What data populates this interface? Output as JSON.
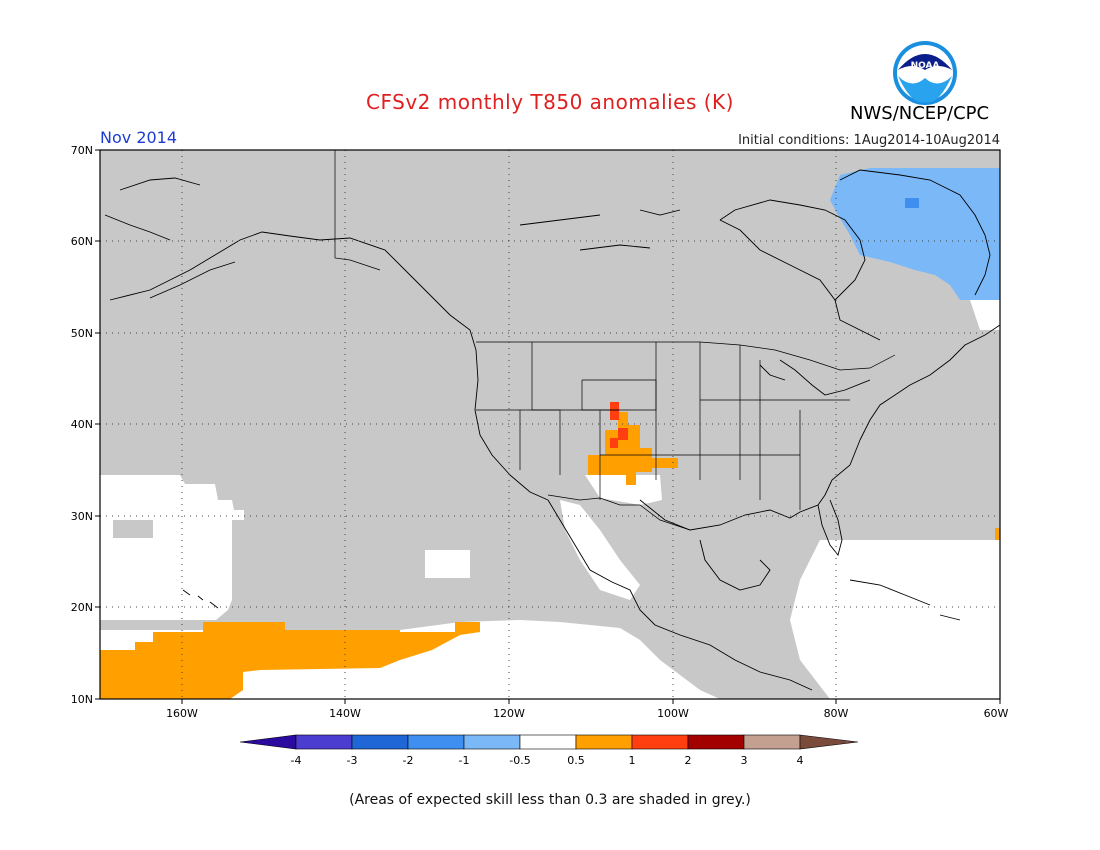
{
  "title": "CFSv2 monthly T850 anomalies (K)",
  "month": "Nov 2014",
  "initial_conditions": "Initial conditions: 1Aug2014-10Aug2014",
  "agency": "NWS/NCEP/CPC",
  "logo_text": "NOAA",
  "footnote": "(Areas of expected skill less than 0.3 are shaded in grey.)",
  "colors": {
    "skill_mask": "#c8c8c8",
    "ocean_white": "#ffffff",
    "coast": "#000000",
    "grid": "#444444"
  },
  "map": {
    "lat_labels": [
      "70N",
      "60N",
      "50N",
      "40N",
      "30N",
      "20N",
      "10N"
    ],
    "lon_labels": [
      "160W",
      "140W",
      "120W",
      "100W",
      "80W",
      "60W"
    ]
  },
  "colorbar": {
    "tick_labels": [
      "-4",
      "-3",
      "-2",
      "-1",
      "-0.5",
      "0.5",
      "1",
      "2",
      "3",
      "4"
    ],
    "colors": [
      "#2b0aa0",
      "#4a3dd0",
      "#1f66d6",
      "#3f8ff0",
      "#7ab8f7",
      "#ffffff",
      "#ff9f00",
      "#ff3f10",
      "#a30000",
      "#c4a090",
      "#7a4a3a"
    ]
  },
  "anomalies": [
    {
      "region": "NE Canada / Labrador",
      "sign": "negative",
      "band": "-1 to -0.5"
    },
    {
      "region": "Colorado / New Mexico / Texas panhandle",
      "sign": "positive",
      "band": "0.5 to 1, locally 1 to 2"
    },
    {
      "region": "Tropical Pacific south of Hawaii",
      "sign": "positive",
      "band": "0.5 to 1"
    }
  ]
}
